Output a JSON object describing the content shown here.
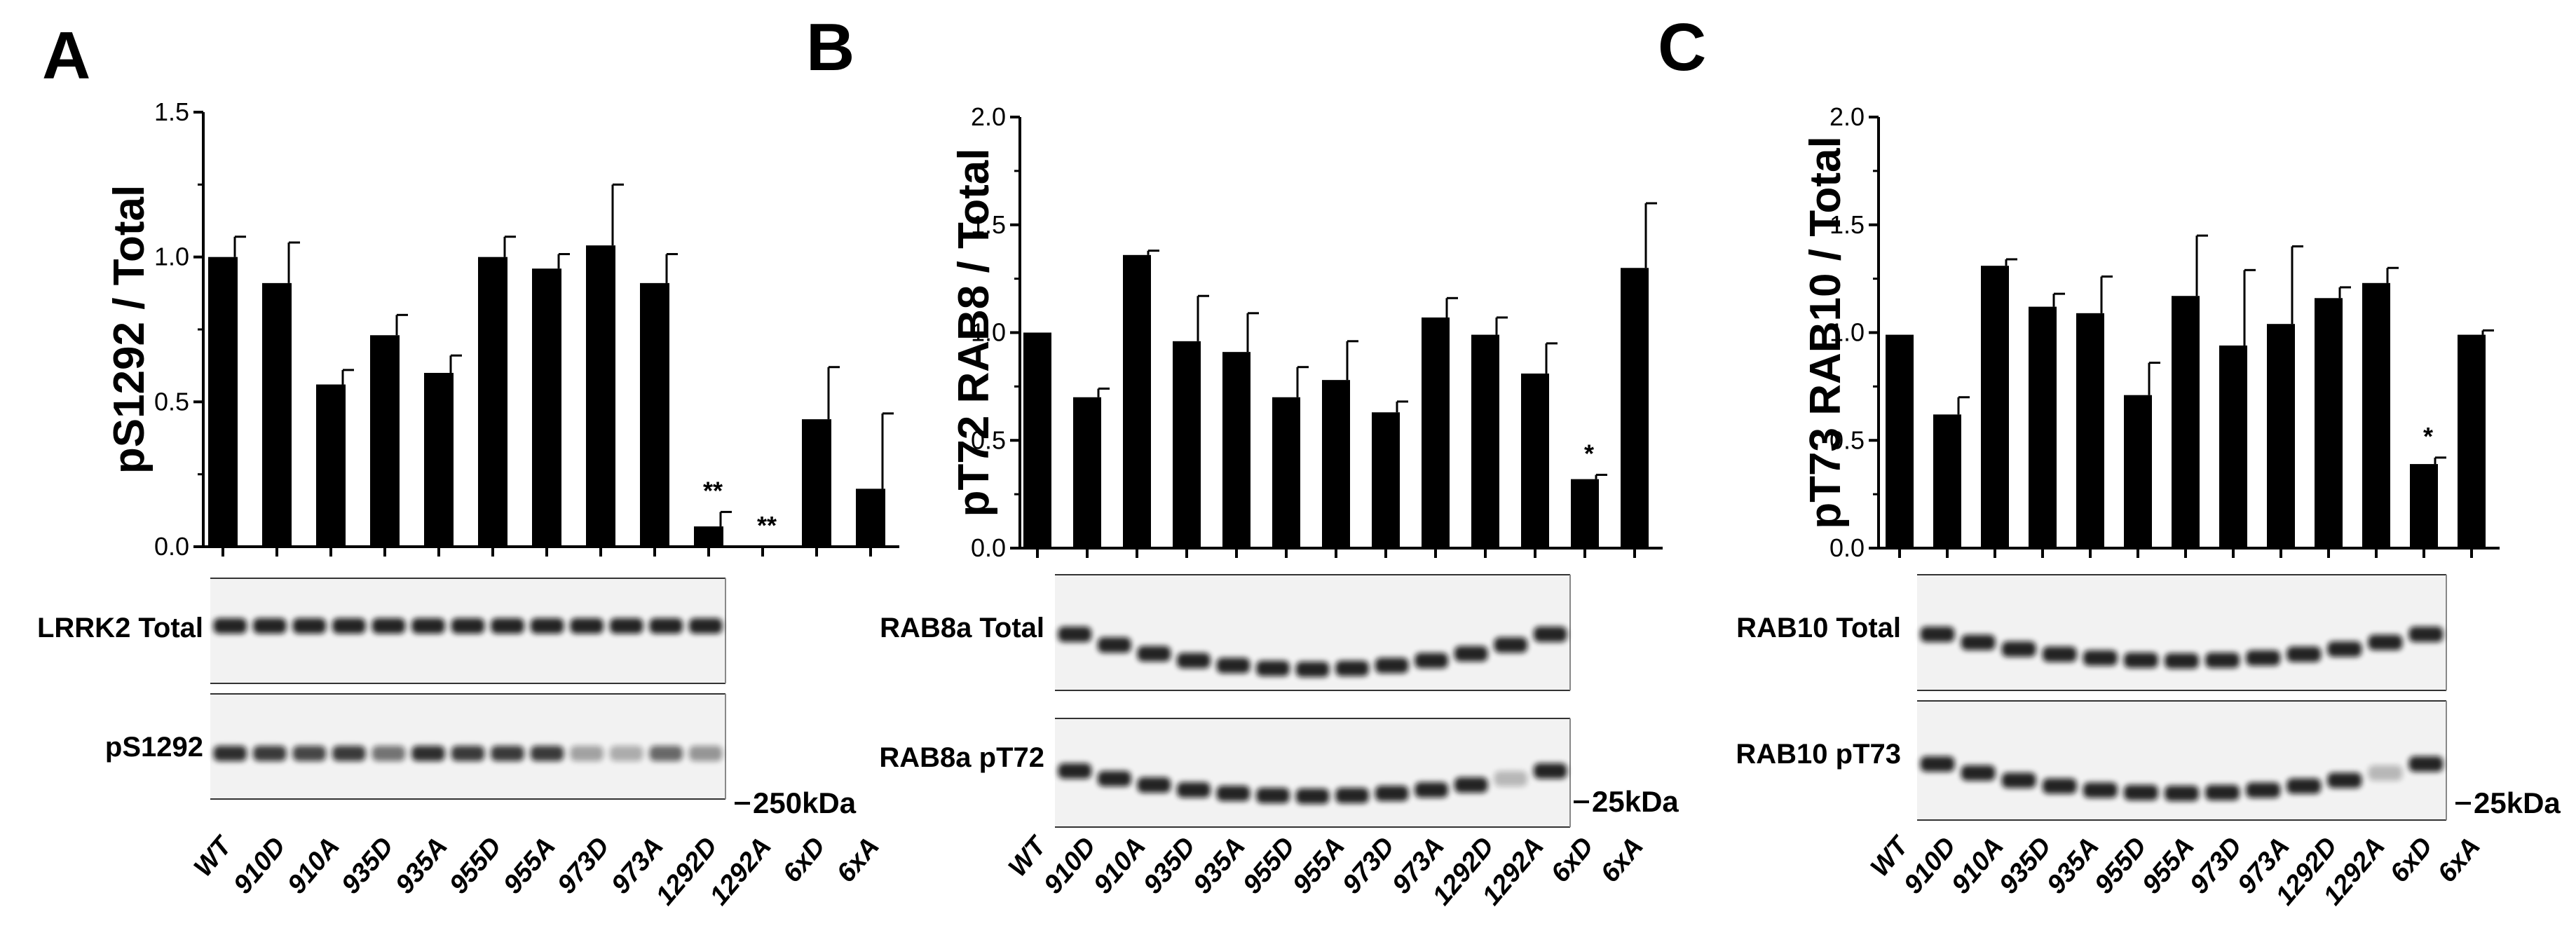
{
  "figure": {
    "panels": [
      {
        "letter": "A",
        "blots": [
          "LRRK2 Total",
          "pS1292"
        ],
        "marker": "250kDa"
      },
      {
        "letter": "B",
        "blots": [
          "RAB8a Total",
          "RAB8a pT72"
        ],
        "marker": "25kDa"
      },
      {
        "letter": "C",
        "blots": [
          "RAB10 Total",
          "RAB10 pT73"
        ],
        "marker": "25kDa"
      }
    ]
  },
  "chart_data": [
    {
      "type": "bar",
      "title": "",
      "ylabel": "pS1292 / Total",
      "xlabel": "",
      "ylim": [
        0,
        1.5
      ],
      "yticks": [
        "0.0",
        "0.5",
        "1.0",
        "1.5"
      ],
      "categories": [
        "WT",
        "910D",
        "910A",
        "935D",
        "935A",
        "955D",
        "955A",
        "973D",
        "973A",
        "1292D",
        "1292A",
        "6xD",
        "6xA"
      ],
      "values": [
        1.0,
        0.91,
        0.56,
        0.73,
        0.6,
        1.0,
        0.96,
        1.04,
        0.91,
        0.07,
        0.0,
        0.44,
        0.2
      ],
      "errors": [
        0.07,
        0.14,
        0.05,
        0.07,
        0.06,
        0.07,
        0.05,
        0.21,
        0.1,
        0.05,
        0.0,
        0.18,
        0.26
      ],
      "significance": [
        "",
        "",
        "",
        "",
        "",
        "",
        "",
        "",
        "",
        "**",
        "**",
        "",
        ""
      ],
      "bar_color": "#000000"
    },
    {
      "type": "bar",
      "title": "",
      "ylabel": "pT72 RAB8 / Total",
      "xlabel": "",
      "ylim": [
        0,
        2.0
      ],
      "yticks": [
        "0.0",
        "0.5",
        "1.0",
        "1.5",
        "2.0"
      ],
      "categories": [
        "WT",
        "910D",
        "910A",
        "935D",
        "935A",
        "955D",
        "955A",
        "973D",
        "973A",
        "1292D",
        "1292A",
        "6xD",
        "6xA"
      ],
      "values": [
        1.0,
        0.7,
        1.36,
        0.96,
        0.91,
        0.7,
        0.78,
        0.63,
        1.07,
        0.99,
        0.81,
        0.32,
        1.3
      ],
      "errors": [
        0.0,
        0.04,
        0.02,
        0.21,
        0.18,
        0.14,
        0.18,
        0.05,
        0.09,
        0.08,
        0.14,
        0.02,
        0.3
      ],
      "significance": [
        "",
        "",
        "",
        "",
        "",
        "",
        "",
        "",
        "",
        "",
        "",
        "*",
        ""
      ],
      "bar_color": "#000000"
    },
    {
      "type": "bar",
      "title": "",
      "ylabel": "pT73 RAB10 / Total",
      "xlabel": "",
      "ylim": [
        0,
        2.0
      ],
      "yticks": [
        "0.0",
        "0.5",
        "1.0",
        "1.5",
        "2.0"
      ],
      "categories": [
        "WT",
        "910D",
        "910A",
        "935D",
        "935A",
        "955D",
        "955A",
        "973D",
        "973A",
        "1292D",
        "1292A",
        "6xD",
        "6xA"
      ],
      "values": [
        0.99,
        0.62,
        1.31,
        1.12,
        1.09,
        0.71,
        1.17,
        0.94,
        1.04,
        1.16,
        1.23,
        0.39,
        0.99
      ],
      "errors": [
        0.0,
        0.08,
        0.03,
        0.06,
        0.17,
        0.15,
        0.28,
        0.35,
        0.36,
        0.05,
        0.07,
        0.03,
        0.02
      ],
      "significance": [
        "",
        "",
        "",
        "",
        "",
        "",
        "",
        "",
        "",
        "",
        "",
        "*",
        ""
      ],
      "bar_color": "#000000"
    }
  ]
}
